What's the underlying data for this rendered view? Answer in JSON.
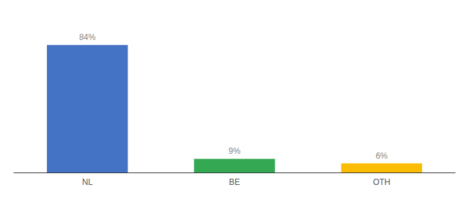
{
  "chart_data": {
    "type": "bar",
    "categories": [
      "NL",
      "BE",
      "OTH"
    ],
    "values": [
      84,
      9,
      6
    ],
    "value_labels": [
      "84%",
      "9%",
      "6%"
    ],
    "colors": [
      "#4472c4",
      "#34a853",
      "#fbbc04"
    ],
    "ylim": [
      0,
      100
    ],
    "grid": false,
    "data_labels": true,
    "tick_labels": "x"
  }
}
